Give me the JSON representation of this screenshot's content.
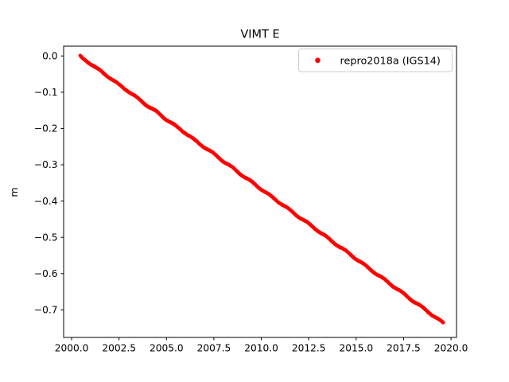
{
  "figure": {
    "background": "#ffffff",
    "frame_color": "#000000"
  },
  "chart_data": {
    "type": "scatter",
    "title": "VIMT E",
    "xlabel": "",
    "ylabel": "m",
    "xlim": [
      1999.58,
      2020.29
    ],
    "ylim": [
      -0.776,
      0.027
    ],
    "grid": false,
    "legend_position": "upper right",
    "xticks": {
      "values": [
        2000.0,
        2002.5,
        2005.0,
        2007.5,
        2010.0,
        2012.5,
        2015.0,
        2017.5,
        2020.0
      ],
      "labels": [
        "2000.0",
        "2002.5",
        "2005.0",
        "2007.5",
        "2010.0",
        "2012.5",
        "2015.0",
        "2017.5",
        "2020.0"
      ]
    },
    "yticks": {
      "values": [
        0.0,
        -0.1,
        -0.2,
        -0.3,
        -0.4,
        -0.5,
        -0.6,
        -0.7
      ],
      "labels": [
        "0.0",
        "−0.1",
        "−0.2",
        "−0.3",
        "−0.4",
        "−0.5",
        "−0.6",
        "−0.7"
      ]
    },
    "series": [
      {
        "name": "repro2018a (IGS14)",
        "color": "#ff0000",
        "marker": "point",
        "points": [
          [
            2000.45,
            -0.001
          ],
          [
            2000.6,
            -0.008
          ],
          [
            2000.8,
            -0.014
          ],
          [
            2001.0,
            -0.021
          ],
          [
            2001.5,
            -0.041
          ],
          [
            2002.0,
            -0.059
          ],
          [
            2002.5,
            -0.08
          ],
          [
            2003.0,
            -0.097
          ],
          [
            2003.5,
            -0.118
          ],
          [
            2004.0,
            -0.137
          ],
          [
            2004.5,
            -0.155
          ],
          [
            2005.0,
            -0.175
          ],
          [
            2005.5,
            -0.194
          ],
          [
            2006.0,
            -0.212
          ],
          [
            2006.5,
            -0.233
          ],
          [
            2007.0,
            -0.251
          ],
          [
            2007.5,
            -0.27
          ],
          [
            2008.0,
            -0.29
          ],
          [
            2008.5,
            -0.309
          ],
          [
            2009.0,
            -0.329
          ],
          [
            2009.5,
            -0.348
          ],
          [
            2010.0,
            -0.367
          ],
          [
            2010.5,
            -0.387
          ],
          [
            2011.0,
            -0.405
          ],
          [
            2011.5,
            -0.425
          ],
          [
            2012.0,
            -0.444
          ],
          [
            2012.5,
            -0.463
          ],
          [
            2013.0,
            -0.482
          ],
          [
            2013.5,
            -0.502
          ],
          [
            2014.0,
            -0.521
          ],
          [
            2014.5,
            -0.54
          ],
          [
            2015.0,
            -0.559
          ],
          [
            2015.5,
            -0.579
          ],
          [
            2016.0,
            -0.598
          ],
          [
            2016.5,
            -0.617
          ],
          [
            2017.0,
            -0.636
          ],
          [
            2017.5,
            -0.656
          ],
          [
            2018.0,
            -0.675
          ],
          [
            2018.5,
            -0.694
          ],
          [
            2019.0,
            -0.713
          ],
          [
            2019.3,
            -0.725
          ],
          [
            2019.6,
            -0.737
          ]
        ]
      }
    ],
    "render": {
      "sample_step_years": 0.007,
      "marker_radius_px": 2.1,
      "annual_wiggle_m": 0.002,
      "noise_m": 0.0012,
      "seed": 42
    }
  }
}
